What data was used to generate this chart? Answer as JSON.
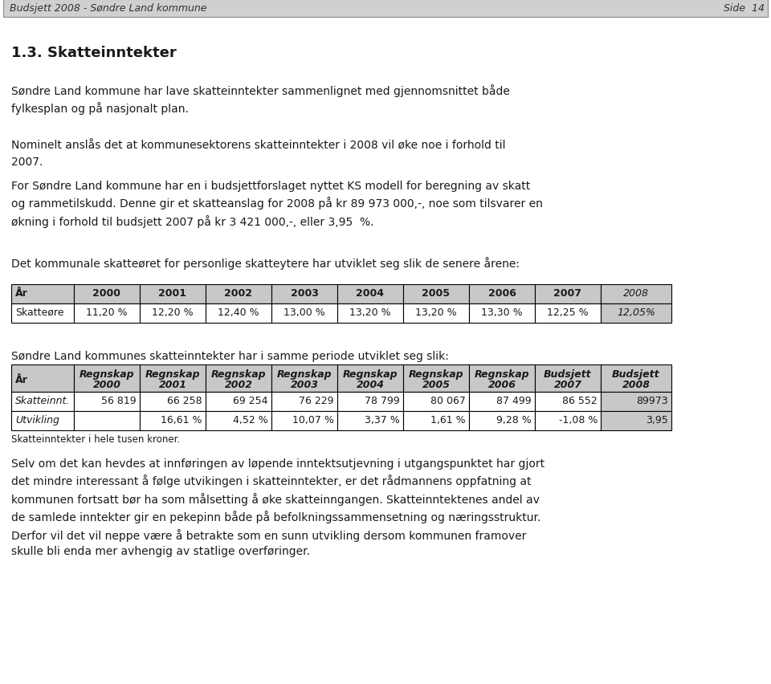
{
  "header_left": "Budsjett 2008 - Søndre Land kommune",
  "header_right": "Side  14",
  "header_bg": "#d0d0d0",
  "section_title": "1.3. Skatteinntekter",
  "para1": "Søndre Land kommune har lave skatteinntekter sammenlignet med gjennomsnittet både\nfylkesplan og på nasjonalt plan.",
  "para2": "Nominelt anslås det at kommunesektorens skatteinntekter i 2008 vil øke noe i forhold til\n2007.",
  "para3": "For Søndre Land kommune har en i budsjettforslaget nyttet KS modell for beregning av skatt\nog rammetilskudd. Denne gir et skatteanslag for 2008 på kr 89 973 000,-, noe som tilsvarer en\nøkning i forhold til budsjett 2007 på kr 3 421 000,-, eller 3,95  %.",
  "intro1": "Det kommunale skatteøret for personlige skatteytere har utviklet seg slik de senere årene:",
  "t1_headers": [
    "År",
    "2000",
    "2001",
    "2002",
    "2003",
    "2004",
    "2005",
    "2006",
    "2007",
    "2008"
  ],
  "t1_row": [
    "Skatteøre",
    "11,20 %",
    "12,20 %",
    "12,40 %",
    "13,00 %",
    "13,20 %",
    "13,20 %",
    "13,30 %",
    "12,25 %",
    "12,05%"
  ],
  "intro2": "Søndre Land kommunes skatteinntekter har i samme periode utviklet seg slik:",
  "t2_hdr1": [
    "År",
    "Regnskap",
    "Regnskap",
    "Regnskap",
    "Regnskap",
    "Regnskap",
    "Regnskap",
    "Regnskap",
    "Budsjett",
    "Budsjett"
  ],
  "t2_hdr2": [
    "",
    "2000",
    "2001",
    "2002",
    "2003",
    "2004",
    "2005",
    "2006",
    "2007",
    "2008"
  ],
  "t2_row1": [
    "Skatteinnt.",
    "56 819",
    "66 258",
    "69 254",
    "76 229",
    "78 799",
    "80 067",
    "87 499",
    "86 552",
    "89973"
  ],
  "t2_row2": [
    "Utvikling",
    "",
    "16,61 %",
    "4,52 %",
    "10,07 %",
    "3,37 %",
    "1,61 %",
    "9,28 %",
    "-1,08 %",
    "3,95"
  ],
  "note": "Skatteinntekter i hele tusen kroner.",
  "para5": "Selv om det kan hevdes at innføringen av løpende inntektsutjevning i utgangspunktet har gjort\ndet mindre interessant å følge utvikingen i skatteinntekter, er det rådmannens oppfatning at\nkommunen fortsatt bør ha som målsetting å øke skatteinngangen. Skatteinntektenes andel av\nde samlede inntekter gir en pekepinn både på befolkningssammensetning og næringsstruktur.\nDerfor vil det vil neppe være å betrakte som en sunn utvikling dersom kommunen framover\nskulle bli enda mer avhengig av statlige overføringer.",
  "header_bg_color": "#d0d0d0",
  "table_hdr_bg": "#c8c8c8",
  "last_col_bg": "#c8c8c8",
  "row_bg": "#ffffff",
  "page_bg": "#ffffff",
  "text_color": "#1a1a1a"
}
